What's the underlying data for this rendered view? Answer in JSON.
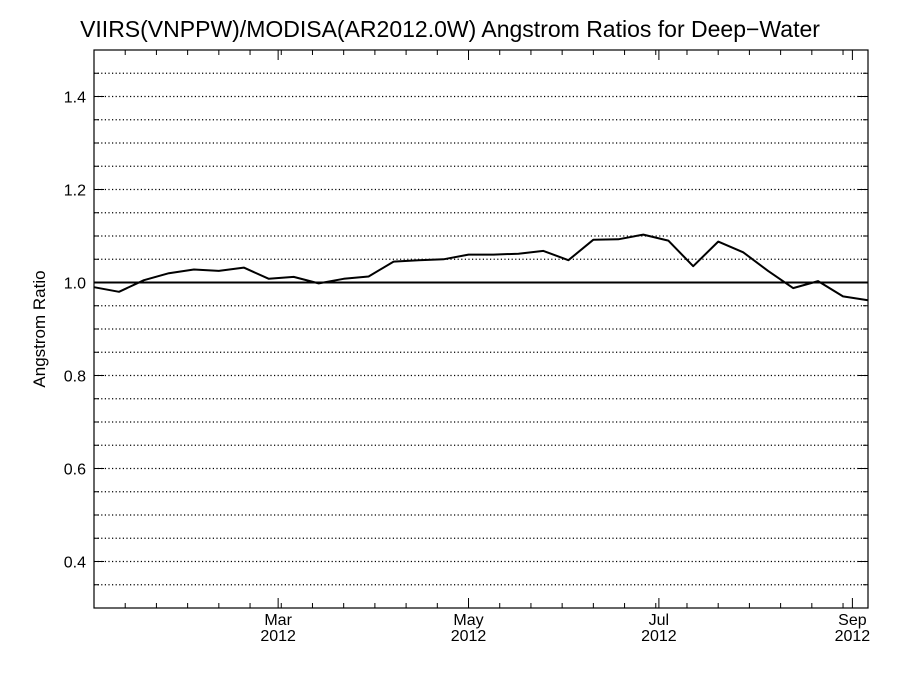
{
  "chart_data": {
    "type": "line",
    "title": "VIIRS(VNPPW)/MODISA(AR2012.0W)  Angstrom Ratios for Deep−Water",
    "xlabel": "",
    "ylabel": "Angstrom Ratio",
    "xlim": [
      "2012-01-02",
      "2012-09-06"
    ],
    "ylim": [
      0.3,
      1.5
    ],
    "yticks": [
      0.4,
      0.6,
      0.8,
      1.0,
      1.2,
      1.4
    ],
    "ytick_labels": [
      "0.4",
      "0.6",
      "0.8",
      "1.0",
      "1.2",
      "1.4"
    ],
    "xticks": [
      {
        "date": "2012-03-01",
        "month": "Mar",
        "year": "2012"
      },
      {
        "date": "2012-05-01",
        "month": "May",
        "year": "2012"
      },
      {
        "date": "2012-07-01",
        "month": "Jul",
        "year": "2012"
      },
      {
        "date": "2012-09-01",
        "month": "Sep",
        "year": "2012"
      }
    ],
    "grid": "horizontal dotted",
    "reference_line": 1.0,
    "series": [
      {
        "x": [
          "2012-01-02",
          "2012-01-10",
          "2012-01-18",
          "2012-01-26",
          "2012-02-03",
          "2012-02-11",
          "2012-02-19",
          "2012-02-27",
          "2012-03-06",
          "2012-03-14",
          "2012-03-22",
          "2012-03-30",
          "2012-04-07",
          "2012-04-15",
          "2012-04-23",
          "2012-05-01",
          "2012-05-09",
          "2012-05-17",
          "2012-05-25",
          "2012-06-02",
          "2012-06-10",
          "2012-06-18",
          "2012-06-26",
          "2012-07-04",
          "2012-07-12",
          "2012-07-20",
          "2012-07-28",
          "2012-08-05",
          "2012-08-13",
          "2012-08-21",
          "2012-08-29",
          "2012-09-06"
        ],
        "values": [
          0.99,
          0.98,
          1.005,
          1.02,
          1.028,
          1.025,
          1.032,
          1.008,
          1.012,
          0.998,
          1.008,
          1.013,
          1.045,
          1.048,
          1.05,
          1.06,
          1.06,
          1.062,
          1.068,
          1.048,
          1.092,
          1.093,
          1.103,
          1.09,
          1.035,
          1.088,
          1.065,
          1.025,
          0.988,
          1.003,
          0.97,
          0.962
        ]
      }
    ]
  }
}
